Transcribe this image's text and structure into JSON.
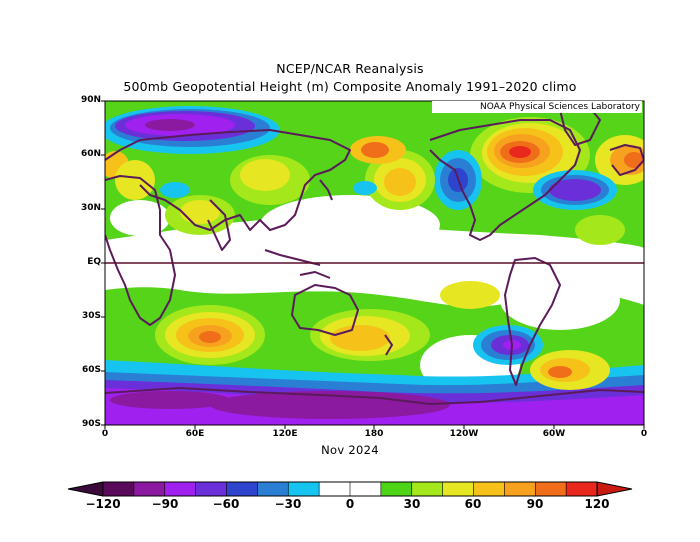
{
  "title": "NCEP/NCAR Reanalysis",
  "subtitle": "500mb Geopotential Height (m) Composite Anomaly 1991–2020 climo",
  "credit": "NOAA Physical Sciences Laboratory",
  "period": "Nov 2024",
  "lat_labels": [
    "90N",
    "60N",
    "30N",
    "EQ",
    "30S",
    "60S",
    "90S"
  ],
  "lon_labels": [
    "0",
    "60E",
    "120E",
    "180",
    "120W",
    "60W",
    "0"
  ],
  "colorbar": {
    "labels": [
      "−120",
      "−90",
      "−60",
      "−30",
      "0",
      "30",
      "60",
      "90",
      "120"
    ],
    "colors": [
      "#5a0a5a",
      "#8c1aa0",
      "#a020f0",
      "#6a2fd8",
      "#2e44cc",
      "#2a7fd4",
      "#17c4f0",
      "#ffffff",
      "#ffffff",
      "#4dd416",
      "#a4e81c",
      "#e6e622",
      "#f6c21a",
      "#f6a21e",
      "#f06e1a",
      "#e8281c"
    ]
  },
  "colors": {
    "land_outline": "#5b1b5b",
    "equator_line": "#5a0f2a",
    "frame": "#000000"
  },
  "features": [
    {
      "name": "Canada / N. Atlantic positive anomaly",
      "sign": "positive",
      "peak_m": 120
    },
    {
      "name": "N. Atlantic negative anomaly",
      "sign": "negative",
      "peak_m": -60
    },
    {
      "name": "Gulf of Alaska negative anomaly",
      "sign": "negative",
      "peak_m": -60
    },
    {
      "name": "S. Indian Ocean positive anomaly",
      "sign": "positive",
      "peak_m": 90
    },
    {
      "name": "S. Pacific negative anomaly",
      "sign": "negative",
      "peak_m": -90
    },
    {
      "name": "Antarctic negative anomaly",
      "sign": "negative",
      "peak_m": -120
    }
  ]
}
